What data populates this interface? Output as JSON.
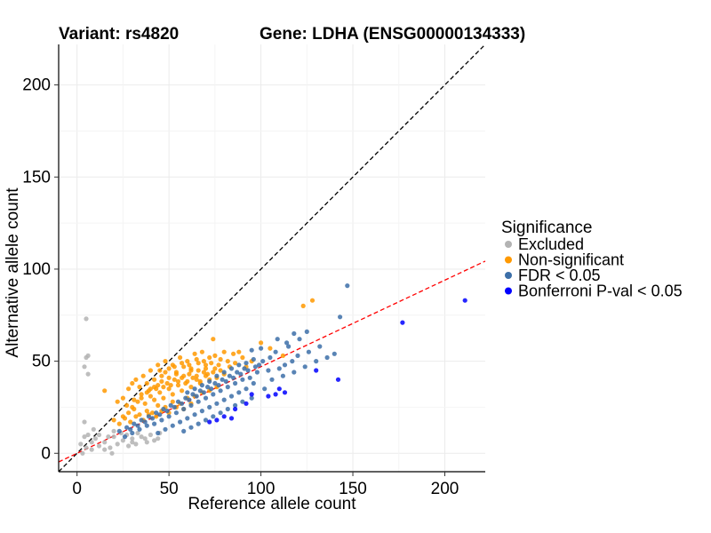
{
  "chart_data": {
    "type": "scatter",
    "title_left": "Variant: rs4820",
    "title_right": "Gene: LDHA (ENSG00000134333)",
    "xlabel": "Reference allele count",
    "ylabel": "Alternative allele count",
    "xlim": [
      -10,
      222
    ],
    "ylim": [
      -10,
      222
    ],
    "xticks": [
      0,
      50,
      100,
      150,
      200
    ],
    "yticks": [
      0,
      50,
      100,
      150,
      200
    ],
    "grid": true,
    "legend": {
      "title": "Significance",
      "position": "right",
      "entries": [
        {
          "label": "Excluded",
          "color": "#b3b3b3"
        },
        {
          "label": "Non-significant",
          "color": "#ff9900"
        },
        {
          "label": "FDR < 0.05",
          "color": "#3c6fa8"
        },
        {
          "label": "Bonferroni P-val < 0.05",
          "color": "#0000ff"
        }
      ]
    },
    "reference_lines": [
      {
        "slope": 1.0,
        "intercept": 0,
        "color": "#000000",
        "dash": true
      },
      {
        "slope": 0.47,
        "intercept": 0,
        "color": "#ff0000",
        "dash": true
      }
    ],
    "series": [
      {
        "name": "Excluded",
        "color": "#b3b3b3",
        "points": [
          [
            5,
            73
          ],
          [
            5,
            52
          ],
          [
            6,
            53
          ],
          [
            4,
            47
          ],
          [
            6,
            43
          ],
          [
            4,
            17
          ],
          [
            6,
            10
          ],
          [
            8,
            6
          ],
          [
            10,
            8
          ],
          [
            12,
            4
          ],
          [
            15,
            6
          ],
          [
            18,
            3
          ],
          [
            20,
            9
          ],
          [
            22,
            5
          ],
          [
            25,
            7
          ],
          [
            28,
            4
          ],
          [
            30,
            8
          ],
          [
            32,
            5
          ],
          [
            35,
            9
          ],
          [
            38,
            6
          ],
          [
            40,
            10
          ],
          [
            42,
            7
          ],
          [
            45,
            11
          ],
          [
            20,
            12
          ],
          [
            15,
            2
          ],
          [
            3,
            0
          ],
          [
            5,
            3
          ],
          [
            9,
            13
          ],
          [
            27,
            10
          ],
          [
            33,
            11
          ],
          [
            37,
            8
          ],
          [
            12,
            10
          ],
          [
            17,
            9
          ],
          [
            24,
            11
          ],
          [
            30,
            6
          ],
          [
            44,
            8
          ],
          [
            8,
            2
          ],
          [
            2,
            5
          ],
          [
            4,
            9
          ],
          [
            19,
            0
          ]
        ]
      },
      {
        "name": "Non-significant",
        "color": "#ff9900",
        "points": [
          [
            123,
            80
          ],
          [
            128,
            83
          ],
          [
            74,
            62
          ],
          [
            88,
            55
          ],
          [
            100,
            60
          ],
          [
            105,
            57
          ],
          [
            112,
            53
          ],
          [
            15,
            34
          ],
          [
            22,
            28
          ],
          [
            25,
            30
          ],
          [
            28,
            35
          ],
          [
            30,
            38
          ],
          [
            32,
            40
          ],
          [
            34,
            36
          ],
          [
            36,
            42
          ],
          [
            38,
            33
          ],
          [
            40,
            45
          ],
          [
            42,
            40
          ],
          [
            44,
            48
          ],
          [
            46,
            42
          ],
          [
            48,
            50
          ],
          [
            50,
            46
          ],
          [
            52,
            48
          ],
          [
            54,
            44
          ],
          [
            56,
            52
          ],
          [
            58,
            47
          ],
          [
            60,
            50
          ],
          [
            62,
            45
          ],
          [
            64,
            54
          ],
          [
            66,
            49
          ],
          [
            68,
            55
          ],
          [
            70,
            48
          ],
          [
            72,
            52
          ],
          [
            75,
            53
          ],
          [
            78,
            51
          ],
          [
            80,
            55
          ],
          [
            82,
            50
          ],
          [
            85,
            54
          ],
          [
            90,
            52
          ],
          [
            95,
            50
          ],
          [
            30,
            25
          ],
          [
            33,
            28
          ],
          [
            35,
            30
          ],
          [
            37,
            27
          ],
          [
            40,
            31
          ],
          [
            42,
            29
          ],
          [
            45,
            33
          ],
          [
            47,
            30
          ],
          [
            50,
            35
          ],
          [
            52,
            32
          ],
          [
            55,
            37
          ],
          [
            57,
            34
          ],
          [
            60,
            39
          ],
          [
            62,
            36
          ],
          [
            65,
            40
          ],
          [
            67,
            38
          ],
          [
            70,
            42
          ],
          [
            72,
            40
          ],
          [
            74,
            44
          ],
          [
            76,
            41
          ],
          [
            78,
            45
          ],
          [
            80,
            43
          ],
          [
            25,
            20
          ],
          [
            28,
            22
          ],
          [
            31,
            24
          ],
          [
            34,
            21
          ],
          [
            38,
            23
          ],
          [
            41,
            22
          ],
          [
            44,
            26
          ],
          [
            48,
            25
          ],
          [
            52,
            28
          ],
          [
            56,
            27
          ],
          [
            60,
            30
          ],
          [
            64,
            31
          ],
          [
            68,
            33
          ],
          [
            72,
            34
          ],
          [
            76,
            36
          ],
          [
            20,
            18
          ],
          [
            23,
            16
          ],
          [
            26,
            19
          ],
          [
            29,
            17
          ],
          [
            32,
            20
          ],
          [
            36,
            18
          ],
          [
            39,
            21
          ],
          [
            43,
            20
          ],
          [
            46,
            23
          ],
          [
            50,
            22
          ],
          [
            54,
            25
          ],
          [
            58,
            24
          ],
          [
            62,
            27
          ],
          [
            38,
            38
          ],
          [
            42,
            36
          ],
          [
            46,
            39
          ],
          [
            50,
            41
          ],
          [
            54,
            43
          ],
          [
            58,
            42
          ],
          [
            62,
            46
          ],
          [
            66,
            45
          ],
          [
            70,
            46
          ],
          [
            45,
            45
          ],
          [
            48,
            44
          ],
          [
            53,
            47
          ],
          [
            57,
            49
          ],
          [
            61,
            48
          ],
          [
            65,
            51
          ],
          [
            69,
            50
          ],
          [
            73,
            49
          ],
          [
            40,
            35
          ],
          [
            44,
            37
          ],
          [
            49,
            38
          ],
          [
            53,
            40
          ],
          [
            57,
            41
          ],
          [
            61,
            43
          ],
          [
            65,
            42
          ],
          [
            69,
            44
          ],
          [
            27,
            26
          ],
          [
            31,
            29
          ],
          [
            35,
            32
          ],
          [
            39,
            34
          ],
          [
            43,
            35
          ],
          [
            47,
            36
          ],
          [
            51,
            37
          ],
          [
            55,
            39
          ],
          [
            59,
            38
          ],
          [
            63,
            41
          ],
          [
            67,
            39
          ],
          [
            71,
            43
          ],
          [
            75,
            46
          ],
          [
            77,
            48
          ],
          [
            83,
            47
          ],
          [
            86,
            49
          ],
          [
            92,
            47
          ]
        ]
      },
      {
        "name": "FDR < 0.05",
        "color": "#3c6fa8",
        "points": [
          [
            147,
            91
          ],
          [
            143,
            74
          ],
          [
            125,
            66
          ],
          [
            118,
            65
          ],
          [
            109,
            62
          ],
          [
            114,
            60
          ],
          [
            108,
            55
          ],
          [
            100,
            57
          ],
          [
            95,
            56
          ],
          [
            120,
            53
          ],
          [
            117,
            50
          ],
          [
            113,
            48
          ],
          [
            110,
            46
          ],
          [
            104,
            45
          ],
          [
            98,
            44
          ],
          [
            94,
            41
          ],
          [
            90,
            40
          ],
          [
            86,
            38
          ],
          [
            82,
            36
          ],
          [
            78,
            34
          ],
          [
            74,
            32
          ],
          [
            70,
            30
          ],
          [
            66,
            28
          ],
          [
            62,
            26
          ],
          [
            58,
            24
          ],
          [
            54,
            22
          ],
          [
            50,
            20
          ],
          [
            46,
            18
          ],
          [
            42,
            16
          ],
          [
            38,
            15
          ],
          [
            34,
            13
          ],
          [
            30,
            11
          ],
          [
            26,
            9
          ],
          [
            101,
            50
          ],
          [
            97,
            47
          ],
          [
            93,
            45
          ],
          [
            89,
            43
          ],
          [
            85,
            41
          ],
          [
            81,
            39
          ],
          [
            77,
            37
          ],
          [
            73,
            35
          ],
          [
            69,
            33
          ],
          [
            65,
            31
          ],
          [
            61,
            29
          ],
          [
            57,
            27
          ],
          [
            53,
            25
          ],
          [
            49,
            23
          ],
          [
            45,
            21
          ],
          [
            41,
            19
          ],
          [
            37,
            17
          ],
          [
            33,
            15
          ],
          [
            29,
            13
          ],
          [
            92,
            35
          ],
          [
            88,
            33
          ],
          [
            84,
            31
          ],
          [
            80,
            29
          ],
          [
            76,
            27
          ],
          [
            72,
            25
          ],
          [
            68,
            23
          ],
          [
            64,
            21
          ],
          [
            60,
            19
          ],
          [
            56,
            17
          ],
          [
            52,
            15
          ],
          [
            48,
            13
          ],
          [
            44,
            11
          ],
          [
            96,
            38
          ],
          [
            106,
            40
          ],
          [
            112,
            42
          ],
          [
            118,
            44
          ],
          [
            124,
            47
          ],
          [
            130,
            50
          ],
          [
            136,
            52
          ],
          [
            140,
            54
          ],
          [
            102,
            35
          ],
          [
            95,
            30
          ],
          [
            90,
            28
          ],
          [
            86,
            26
          ],
          [
            82,
            24
          ],
          [
            78,
            22
          ],
          [
            74,
            20
          ],
          [
            70,
            18
          ],
          [
            66,
            16
          ],
          [
            62,
            14
          ],
          [
            58,
            12
          ],
          [
            105,
            52
          ],
          [
            99,
            48
          ],
          [
            91,
            46
          ],
          [
            87,
            44
          ],
          [
            83,
            42
          ],
          [
            79,
            40
          ],
          [
            75,
            38
          ],
          [
            71,
            36
          ],
          [
            67,
            34
          ],
          [
            63,
            32
          ],
          [
            59,
            30
          ],
          [
            55,
            28
          ],
          [
            51,
            26
          ],
          [
            47,
            24
          ],
          [
            43,
            22
          ],
          [
            39,
            20
          ],
          [
            35,
            18
          ],
          [
            31,
            16
          ],
          [
            27,
            14
          ],
          [
            23,
            12
          ],
          [
            60,
            33
          ],
          [
            64,
            35
          ],
          [
            68,
            37
          ],
          [
            72,
            39
          ],
          [
            76,
            42
          ],
          [
            80,
            44
          ],
          [
            84,
            46
          ],
          [
            88,
            48
          ],
          [
            92,
            49
          ],
          [
            96,
            51
          ],
          [
            126,
            55
          ],
          [
            132,
            58
          ],
          [
            115,
            58
          ],
          [
            121,
            62
          ]
        ]
      },
      {
        "name": "Bonferroni P-val < 0.05",
        "color": "#0000ff",
        "points": [
          [
            211,
            83
          ],
          [
            177,
            71
          ],
          [
            142,
            40
          ],
          [
            130,
            45
          ],
          [
            110,
            35
          ],
          [
            108,
            32
          ],
          [
            113,
            33
          ],
          [
            104,
            31
          ],
          [
            92,
            27
          ],
          [
            86,
            24
          ],
          [
            84,
            19
          ],
          [
            80,
            20
          ],
          [
            72,
            17
          ],
          [
            76,
            18
          ],
          [
            95,
            32
          ]
        ]
      }
    ]
  }
}
